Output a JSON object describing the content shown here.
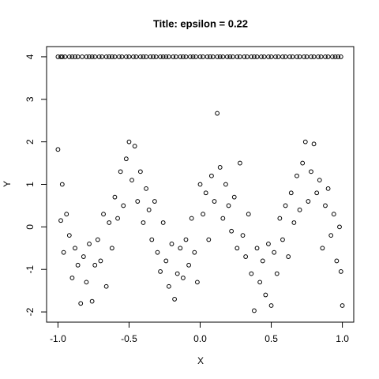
{
  "chart_data": {
    "type": "scatter",
    "title": "Title: epsilon =  0.22",
    "x_label": "X",
    "y_label": "Y",
    "xlim": [
      -1.08,
      1.08
    ],
    "ylim": [
      -2.24,
      4.24
    ],
    "xticks": [
      {
        "value": -1.0,
        "label": "-1.0"
      },
      -0.5,
      {
        "value": 0.0,
        "label": "0.0"
      },
      0.5,
      {
        "value": 1.0,
        "label": "1.0"
      }
    ],
    "yticks": [
      -2,
      -1,
      0,
      1,
      2,
      3,
      4
    ],
    "grid": false,
    "series": [
      {
        "color": "#000000",
        "x": [
          -1,
          -0.98,
          -0.97,
          -0.96,
          -0.94,
          -0.92,
          -0.9,
          -0.88,
          -0.86,
          -0.84,
          -0.82,
          -0.8,
          -0.78,
          -0.76,
          -0.74,
          -0.72,
          -0.7,
          -0.68,
          -0.66,
          -0.64,
          -0.62,
          -0.6,
          -0.58,
          -0.56,
          -0.54,
          -0.52,
          -0.5,
          -0.48,
          -0.46,
          -0.44,
          -0.42,
          -0.4,
          -0.38,
          -0.36,
          -0.34,
          -0.32,
          -0.3,
          -0.28,
          -0.26,
          -0.24,
          -0.22,
          -0.2,
          -0.18,
          -0.16,
          -0.14,
          -0.12,
          -0.1,
          -0.08,
          -0.06,
          -0.04,
          -0.02,
          0,
          0.02,
          0.04,
          0.06,
          0.08,
          0.1,
          0.12,
          0.14,
          0.16,
          0.18,
          0.2,
          0.22,
          0.24,
          0.26,
          0.28,
          0.3,
          0.32,
          0.34,
          0.36,
          0.38,
          0.4,
          0.42,
          0.44,
          0.46,
          0.48,
          0.5,
          0.52,
          0.54,
          0.56,
          0.58,
          0.6,
          0.62,
          0.64,
          0.66,
          0.68,
          0.7,
          0.72,
          0.74,
          0.76,
          0.78,
          0.8,
          0.82,
          0.84,
          0.86,
          0.88,
          0.9,
          0.92,
          0.94,
          0.96,
          0.98,
          0.99,
          1
        ],
        "y": [
          1.82,
          0.15,
          1.0,
          -0.6,
          0.3,
          -0.2,
          -1.2,
          -0.5,
          -0.9,
          -1.8,
          -0.7,
          -1.3,
          -0.4,
          -1.75,
          -0.9,
          -0.3,
          -0.8,
          0.3,
          -1.4,
          0.1,
          -0.5,
          0.7,
          0.2,
          1.3,
          0.5,
          1.6,
          2.0,
          1.1,
          1.9,
          0.6,
          1.3,
          0.1,
          0.9,
          0.4,
          -0.3,
          0.6,
          -0.6,
          -1.05,
          0.1,
          -0.8,
          -1.4,
          -0.4,
          -1.7,
          -1.1,
          -0.5,
          -1.2,
          -0.3,
          -0.9,
          0.2,
          -0.6,
          -1.3,
          1.0,
          0.3,
          0.8,
          -0.3,
          1.2,
          0.6,
          2.67,
          1.4,
          0.2,
          1.0,
          0.5,
          -0.1,
          0.7,
          -0.5,
          1.5,
          -0.2,
          -0.7,
          0.3,
          -1.1,
          -1.97,
          -0.5,
          -1.3,
          -0.8,
          -1.6,
          -0.4,
          -1.85,
          -0.6,
          -1.1,
          0.2,
          -0.3,
          0.5,
          -0.7,
          0.8,
          0.1,
          1.2,
          0.4,
          1.5,
          2.0,
          0.6,
          1.3,
          1.95,
          0.8,
          1.1,
          -0.5,
          0.5,
          0.9,
          -0.2,
          0.3,
          -0.8,
          0.0,
          -1.05,
          -1.85
        ]
      },
      {
        "color": "#000000",
        "x": [
          -1,
          -0.98,
          -0.97,
          -0.95,
          -0.92,
          -0.9,
          -0.88,
          -0.86,
          -0.83,
          -0.8,
          -0.78,
          -0.76,
          -0.74,
          -0.71,
          -0.69,
          -0.66,
          -0.64,
          -0.62,
          -0.6,
          -0.57,
          -0.55,
          -0.52,
          -0.5,
          -0.47,
          -0.45,
          -0.42,
          -0.4,
          -0.38,
          -0.35,
          -0.33,
          -0.31,
          -0.28,
          -0.26,
          -0.24,
          -0.22,
          -0.19,
          -0.17,
          -0.14,
          -0.12,
          -0.1,
          -0.07,
          -0.05,
          -0.03,
          0,
          0.02,
          0.05,
          0.07,
          0.09,
          0.12,
          0.14,
          0.16,
          0.19,
          0.21,
          0.23,
          0.26,
          0.28,
          0.31,
          0.33,
          0.36,
          0.38,
          0.4,
          0.43,
          0.45,
          0.48,
          0.5,
          0.53,
          0.55,
          0.58,
          0.6,
          0.63,
          0.65,
          0.68,
          0.7,
          0.73,
          0.75,
          0.78,
          0.8,
          0.83,
          0.85,
          0.88,
          0.9,
          0.93,
          0.95,
          0.97,
          0.99
        ],
        "y": [
          4,
          4,
          4,
          4,
          4,
          4,
          4,
          4,
          4,
          4,
          4,
          4,
          4,
          4,
          4,
          4,
          4,
          4,
          4,
          4,
          4,
          4,
          4,
          4,
          4,
          4,
          4,
          4,
          4,
          4,
          4,
          4,
          4,
          4,
          4,
          4,
          4,
          4,
          4,
          4,
          4,
          4,
          4,
          4,
          4,
          4,
          4,
          4,
          4,
          4,
          4,
          4,
          4,
          4,
          4,
          4,
          4,
          4,
          4,
          4,
          4,
          4,
          4,
          4,
          4,
          4,
          4,
          4,
          4,
          4,
          4,
          4,
          4,
          4,
          4,
          4,
          4,
          4,
          4,
          4,
          4,
          4,
          4,
          4,
          4
        ]
      }
    ]
  }
}
